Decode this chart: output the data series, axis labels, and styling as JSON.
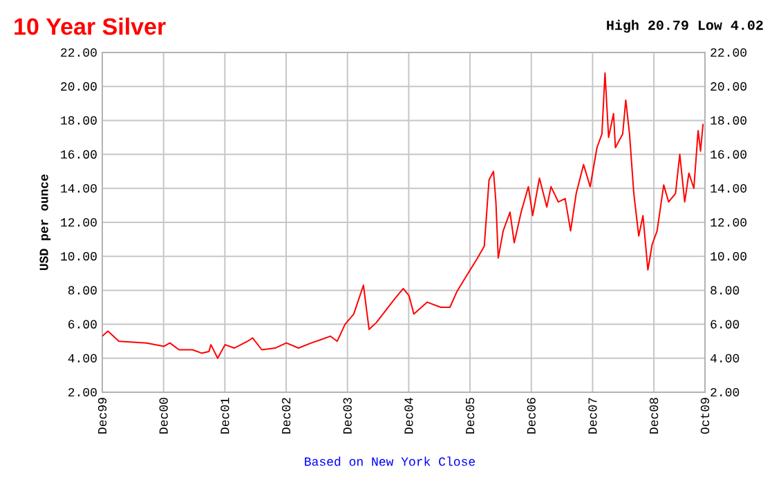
{
  "chart_data": {
    "type": "line",
    "title": "10 Year Silver",
    "subtitle": "High 20.79 Low 4.02",
    "ylabel": "USD per ounce",
    "annotations": [
      "Based on New York Close"
    ],
    "x": [
      "1999-12-01",
      "2000-01-04",
      "2000-03-09",
      "2000-08-21",
      "2000-12-02",
      "2001-01-08",
      "2001-03-02",
      "2001-05-21",
      "2001-07-15",
      "2001-08-28",
      "2001-09-09",
      "2001-10-19",
      "2001-12-02",
      "2002-01-26",
      "2002-04-15",
      "2002-05-14",
      "2002-07-08",
      "2002-09-27",
      "2002-12-02",
      "2003-02-14",
      "2003-04-29",
      "2003-06-27",
      "2003-08-21",
      "2003-10-01",
      "2003-11-17",
      "2004-01-08",
      "2004-03-05",
      "2004-04-08",
      "2004-05-21",
      "2004-07-15",
      "2004-09-09",
      "2004-10-29",
      "2004-12-02",
      "2005-01-01",
      "2005-03-20",
      "2005-06-09",
      "2005-08-03",
      "2005-09-13",
      "2005-11-07",
      "2006-01-15",
      "2006-02-25",
      "2006-03-23",
      "2006-04-19",
      "2006-05-03",
      "2006-05-17",
      "2006-06-16",
      "2006-07-26",
      "2006-08-21",
      "2006-10-01",
      "2006-11-14",
      "2006-12-09",
      "2007-01-19",
      "2007-03-02",
      "2007-03-27",
      "2007-05-10",
      "2007-06-20",
      "2007-07-22",
      "2007-08-25",
      "2007-10-08",
      "2007-11-17",
      "2007-12-27",
      "2008-01-26",
      "2008-02-14",
      "2008-03-05",
      "2008-04-04",
      "2008-04-15",
      "2008-05-28",
      "2008-06-16",
      "2008-07-08",
      "2008-08-03",
      "2008-09-02",
      "2008-09-27",
      "2008-10-26",
      "2008-11-21",
      "2008-12-20",
      "2009-01-29",
      "2009-02-28",
      "2009-04-08",
      "2009-05-03",
      "2009-06-02",
      "2009-06-27",
      "2009-07-26",
      "2009-08-21",
      "2009-09-05",
      "2009-09-20"
    ],
    "series": [
      {
        "color": "#ff0000",
        "values": [
          5.3,
          5.6,
          5.0,
          4.9,
          4.7,
          4.9,
          4.5,
          4.5,
          4.3,
          4.4,
          4.8,
          4.0,
          4.8,
          4.6,
          5.0,
          5.2,
          4.5,
          4.6,
          4.9,
          4.6,
          4.9,
          5.1,
          5.3,
          5.0,
          6.0,
          6.6,
          8.3,
          5.7,
          6.1,
          6.8,
          7.5,
          8.1,
          7.7,
          6.6,
          7.3,
          7.0,
          7.0,
          7.9,
          8.8,
          9.9,
          10.6,
          14.5,
          15.0,
          13.2,
          9.9,
          11.5,
          12.6,
          10.8,
          12.6,
          14.1,
          12.4,
          14.6,
          12.9,
          14.1,
          13.2,
          13.4,
          11.5,
          13.7,
          15.4,
          14.1,
          16.4,
          17.2,
          20.8,
          17.0,
          18.4,
          16.4,
          17.2,
          19.2,
          17.2,
          13.7,
          11.2,
          12.4,
          9.2,
          10.7,
          11.5,
          14.2,
          13.2,
          13.7,
          16.0,
          13.2,
          14.9,
          14.0,
          17.4,
          16.2,
          17.8
        ]
      }
    ],
    "xlim": [
      "1999-12-01",
      "2009-10-01"
    ],
    "xticks": [
      {
        "value": "1999-12-01",
        "label": "Dec99"
      },
      {
        "value": "2000-12-01",
        "label": "Dec00"
      },
      {
        "value": "2001-12-01",
        "label": "Dec01"
      },
      {
        "value": "2002-12-01",
        "label": "Dec02"
      },
      {
        "value": "2003-12-01",
        "label": "Dec03"
      },
      {
        "value": "2004-12-01",
        "label": "Dec04"
      },
      {
        "value": "2005-12-01",
        "label": "Dec05"
      },
      {
        "value": "2006-12-01",
        "label": "Dec06"
      },
      {
        "value": "2007-12-01",
        "label": "Dec07"
      },
      {
        "value": "2008-12-01",
        "label": "Dec08"
      },
      {
        "value": "2009-10-01",
        "label": "Oct09"
      }
    ],
    "ylim": [
      2,
      22
    ],
    "yticks": [
      {
        "value": 2,
        "label": "2.00"
      },
      {
        "value": 4,
        "label": "4.00"
      },
      {
        "value": 6,
        "label": "6.00"
      },
      {
        "value": 8,
        "label": "8.00"
      },
      {
        "value": 10,
        "label": "10.00"
      },
      {
        "value": 12,
        "label": "12.00"
      },
      {
        "value": 14,
        "label": "14.00"
      },
      {
        "value": 16,
        "label": "16.00"
      },
      {
        "value": 18,
        "label": "18.00"
      },
      {
        "value": 20,
        "label": "20.00"
      },
      {
        "value": 22,
        "label": "22.00"
      }
    ],
    "y2lim": [
      2,
      22
    ],
    "y2ticks": [
      {
        "value": 2,
        "label": "2.00"
      },
      {
        "value": 4,
        "label": "4.00"
      },
      {
        "value": 6,
        "label": "6.00"
      },
      {
        "value": 8,
        "label": "8.00"
      },
      {
        "value": 10,
        "label": "10.00"
      },
      {
        "value": 12,
        "label": "12.00"
      },
      {
        "value": 14,
        "label": "14.00"
      },
      {
        "value": 16,
        "label": "16.00"
      },
      {
        "value": 18,
        "label": "18.00"
      },
      {
        "value": 20,
        "label": "20.00"
      },
      {
        "value": 22,
        "label": "22.00"
      }
    ],
    "grid": true,
    "marker": "none",
    "line_style": "solid"
  }
}
